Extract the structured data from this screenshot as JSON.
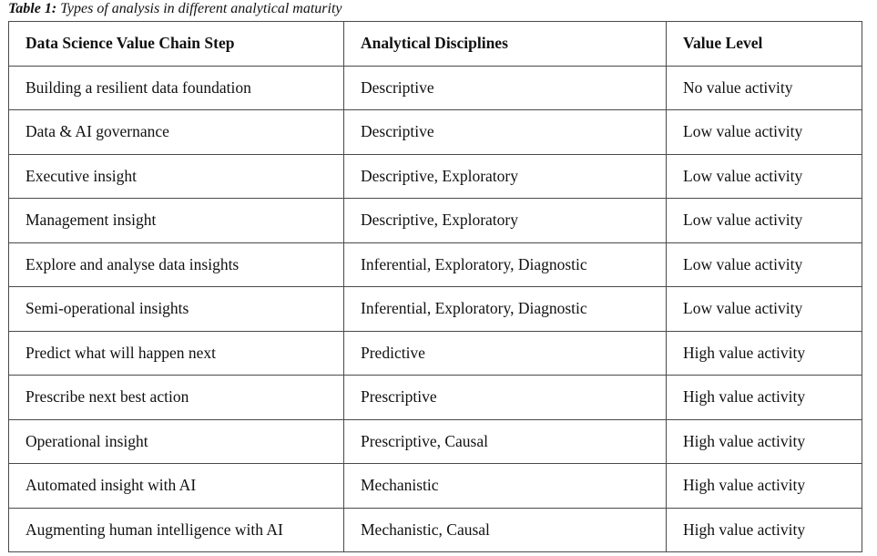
{
  "caption": {
    "label": "Table 1:",
    "text": "Types of analysis in different analytical maturity"
  },
  "table": {
    "headers": [
      "Data Science Value Chain Step",
      "Analytical Disciplines",
      "Value Level"
    ],
    "rows": [
      [
        "Building a resilient data foundation",
        "Descriptive",
        "No value activity"
      ],
      [
        "Data & AI governance",
        "Descriptive",
        "Low value activity"
      ],
      [
        "Executive insight",
        "Descriptive, Exploratory",
        "Low value activity"
      ],
      [
        "Management insight",
        "Descriptive, Exploratory",
        "Low value activity"
      ],
      [
        "Explore and analyse data insights",
        "Inferential, Exploratory, Diagnostic",
        "Low value activity"
      ],
      [
        "Semi-operational insights",
        "Inferential, Exploratory, Diagnostic",
        "Low value activity"
      ],
      [
        "Predict what will happen next",
        "Predictive",
        "High value activity"
      ],
      [
        "Prescribe next best action",
        "Prescriptive",
        "High value activity"
      ],
      [
        "Operational insight",
        "Prescriptive, Causal",
        "High value activity"
      ],
      [
        "Automated insight with AI",
        "Mechanistic",
        "High value activity"
      ],
      [
        "Augmenting human intelligence with AI",
        "Mechanistic, Causal",
        "High value activity"
      ]
    ]
  }
}
